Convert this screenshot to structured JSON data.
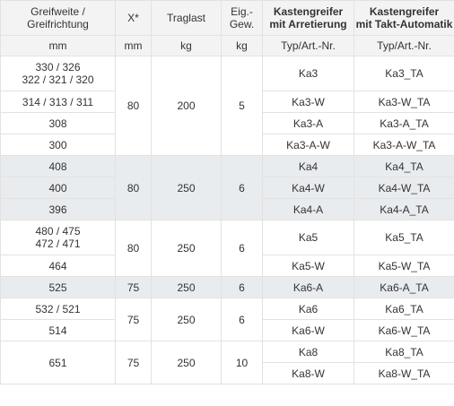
{
  "header": [
    {
      "text": "Greifweite /\nGreifrichtung",
      "bold": false
    },
    {
      "text": "X*",
      "bold": false
    },
    {
      "text": "Traglast",
      "bold": false
    },
    {
      "text": "Eig.-\nGew.",
      "bold": false
    },
    {
      "text": "Kastengreifer\nmit Arretierung",
      "bold": true
    },
    {
      "text": "Kastengreifer\nmit Takt-Automatik",
      "bold": true
    }
  ],
  "units": [
    "mm",
    "mm",
    "kg",
    "kg",
    "Typ/Art.-Nr.",
    "Typ/Art.-Nr."
  ],
  "groups": [
    {
      "x": "80",
      "traglast": "200",
      "gewicht": "5",
      "rows": [
        {
          "greifweite": "330 / 326\n322 / 321 / 320",
          "arretierung": "Ka3",
          "takt": "Ka3_TA"
        },
        {
          "greifweite": "314 / 313 / 311",
          "arretierung": "Ka3-W",
          "takt": "Ka3-W_TA"
        },
        {
          "greifweite": "308",
          "arretierung": "Ka3-A",
          "takt": "Ka3-A_TA"
        },
        {
          "greifweite": "300",
          "arretierung": "Ka3-A-W",
          "takt": "Ka3-A-W_TA"
        }
      ]
    },
    {
      "x": "80",
      "traglast": "250",
      "gewicht": "6",
      "rows": [
        {
          "greifweite": "408",
          "arretierung": "Ka4",
          "takt": "Ka4_TA"
        },
        {
          "greifweite": "400",
          "arretierung": "Ka4-W",
          "takt": "Ka4-W_TA"
        },
        {
          "greifweite": "396",
          "arretierung": "Ka4-A",
          "takt": "Ka4-A_TA"
        }
      ]
    },
    {
      "x": "80",
      "traglast": "250",
      "gewicht": "6",
      "rows": [
        {
          "greifweite": "480 / 475\n472 / 471",
          "arretierung": "Ka5",
          "takt": "Ka5_TA"
        },
        {
          "greifweite": "464",
          "arretierung": "Ka5-W",
          "takt": "Ka5-W_TA"
        }
      ]
    },
    {
      "x": "75",
      "traglast": "250",
      "gewicht": "6",
      "rows": [
        {
          "greifweite": "525",
          "arretierung": "Ka6-A",
          "takt": "Ka6-A_TA"
        }
      ]
    },
    {
      "x": "75",
      "traglast": "250",
      "gewicht": "6",
      "rows": [
        {
          "greifweite": "532 / 521",
          "arretierung": "Ka6",
          "takt": "Ka6_TA"
        },
        {
          "greifweite": "514",
          "arretierung": "Ka6-W",
          "takt": "Ka6-W_TA"
        }
      ]
    },
    {
      "x": "75",
      "traglast": "250",
      "gewicht": "10",
      "rows": [
        {
          "greifweite": "651",
          "arretierung": "Ka8",
          "takt": "Ka8_TA"
        },
        {
          "greifweite": "",
          "arretierung": "Ka8-W",
          "takt": "Ka8-W_TA"
        }
      ]
    }
  ]
}
